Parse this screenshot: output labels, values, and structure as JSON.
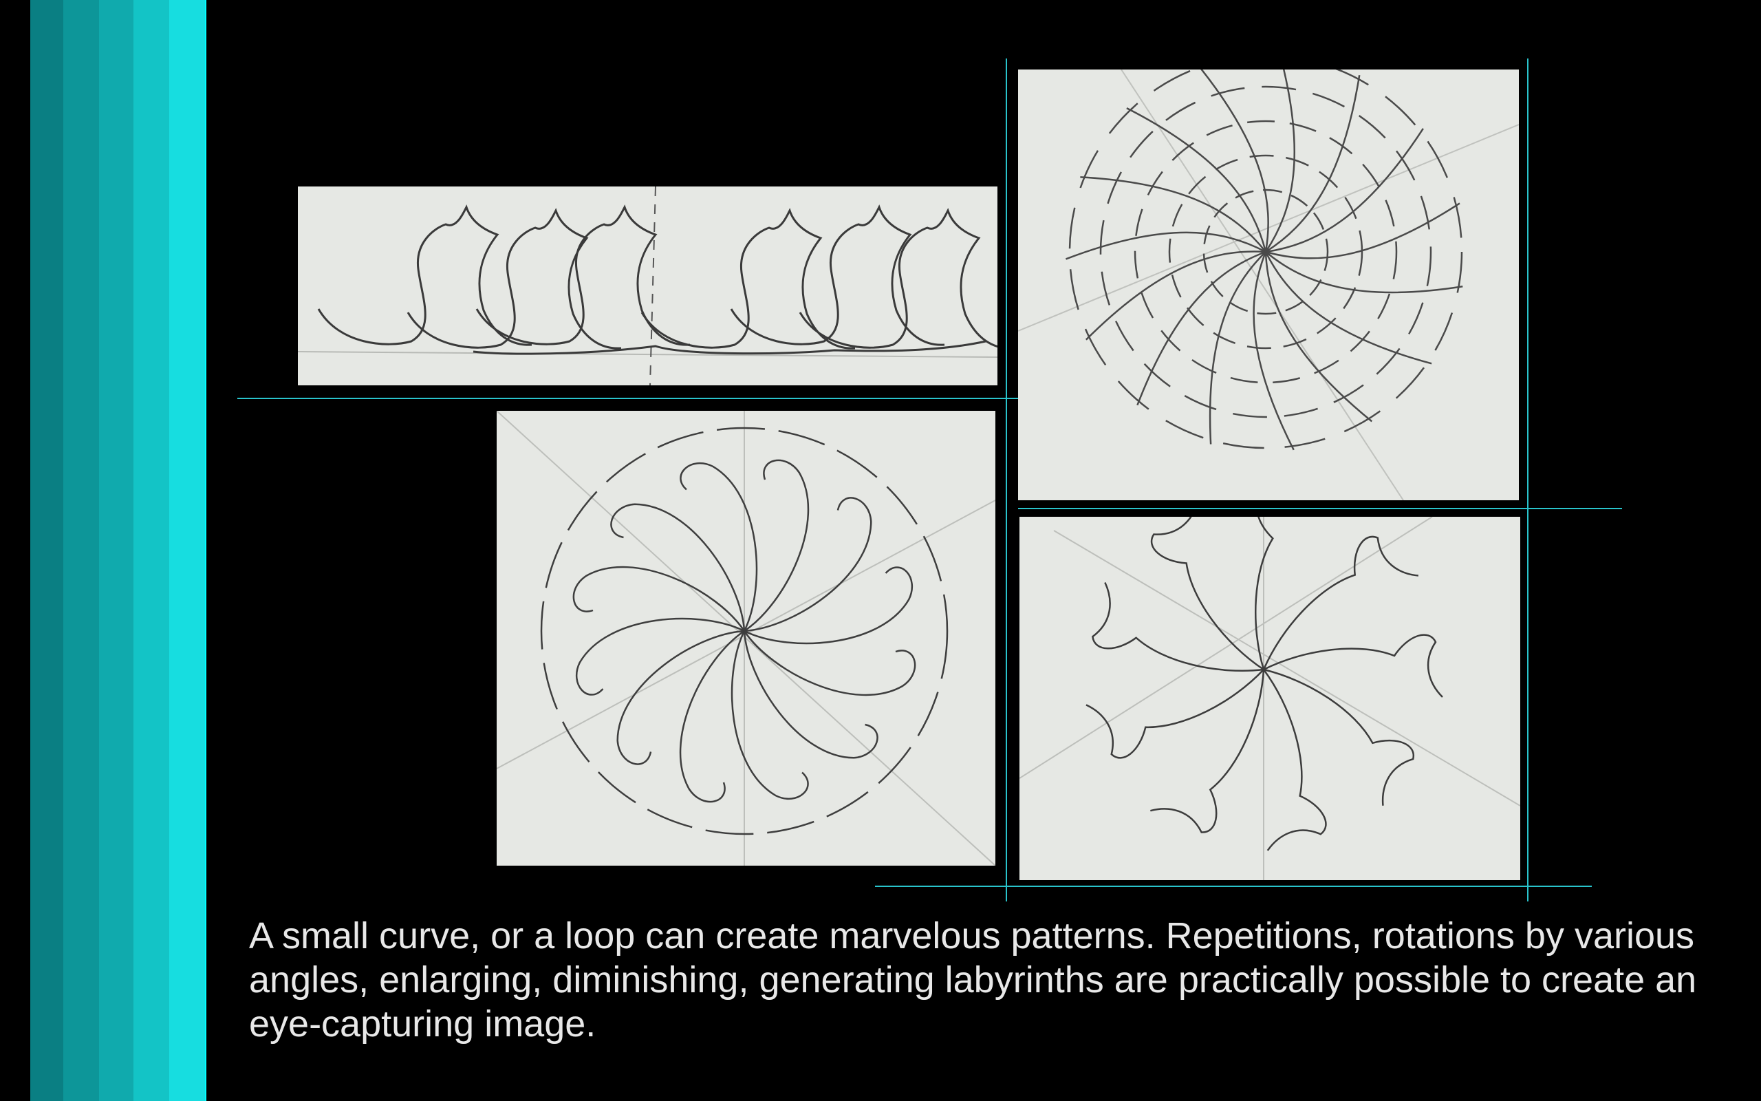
{
  "slide": {
    "caption": "A small curve, or a loop can create marvelous patterns. Repetitions, rotations by various angles, enlarging, diminishing, generating labyrinths are practically possible to create an eye-capturing image.",
    "colors": {
      "background": "#000000",
      "stripes": [
        "#0a7f83",
        "#0d9699",
        "#10aaad",
        "#13c4c6",
        "#17dde0",
        "#00ffff"
      ],
      "guide_lines": "#29c4cc",
      "paper": "#e6e8e4",
      "pencil": "#3a3a3a"
    }
  },
  "images": [
    {
      "name": "tessellation-strip-sketch"
    },
    {
      "name": "spiral-web-sketch"
    },
    {
      "name": "rotational-loop-mandala-sketch"
    },
    {
      "name": "pinwheel-curve-sketch"
    }
  ]
}
